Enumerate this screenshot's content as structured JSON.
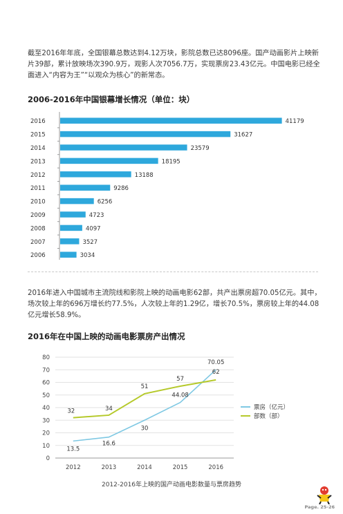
{
  "intro_text": "截至2016年年底，全国银幕总数达到4.12万块，影院总数已达8096座。国产动画影片上映新片39部，累计放映场次390.9万，观影人次7056.7万，实现票房23.43亿元。中国电影已经全面进入“内容为王”“以观众为核心”的新常态。",
  "section1_title": "2006-2016年中国银幕增长情况（单位：块）",
  "body_text": "2016年进入中国城市主流院线和影院上映的动画电影62部，共产出票房超70.05亿元。其中，场次较上年的696万增长约77.5%，人次较上年的1.29亿，增长70.5%，票房较上年的44.08亿元增长58.9%。",
  "section2_title": "2016年在中国上映的动画电影票房产出情况",
  "caption": "2012-2016年上映的国产动画电影数量与票房趋势",
  "page_label": "Page. 25-26",
  "colors": {
    "bar": "#2ea8dc",
    "box_office": "#7ec8e3",
    "count": "#b5c92a",
    "grid": "#e2e2e2"
  },
  "chart_data": [
    {
      "type": "bar",
      "orientation": "horizontal",
      "title": "2006-2016年中国银幕增长情况（单位：块）",
      "categories": [
        "2016",
        "2015",
        "2014",
        "2013",
        "2012",
        "2011",
        "2010",
        "2009",
        "2008",
        "2007",
        "2006"
      ],
      "values": [
        41179,
        31627,
        23579,
        18195,
        13188,
        9286,
        6256,
        4723,
        4097,
        3527,
        3034
      ],
      "xlim": [
        0,
        42000
      ],
      "grid": false,
      "legend": "none"
    },
    {
      "type": "line",
      "title": "2016年在中国上映的动画电影票房产出情况",
      "x": [
        "2012",
        "2013",
        "2014",
        "2015",
        "2016"
      ],
      "series": [
        {
          "name": "票房（亿元）",
          "values": [
            13.5,
            16.6,
            30,
            44.08,
            70.05
          ]
        },
        {
          "name": "部数（部）",
          "values": [
            32,
            34,
            51,
            57,
            62
          ]
        }
      ],
      "yticks": [
        "0",
        "10",
        "20",
        "30",
        "40",
        "50",
        "60",
        "70",
        "80"
      ],
      "ylim": [
        0,
        80
      ],
      "grid": true,
      "legend": "right"
    }
  ]
}
